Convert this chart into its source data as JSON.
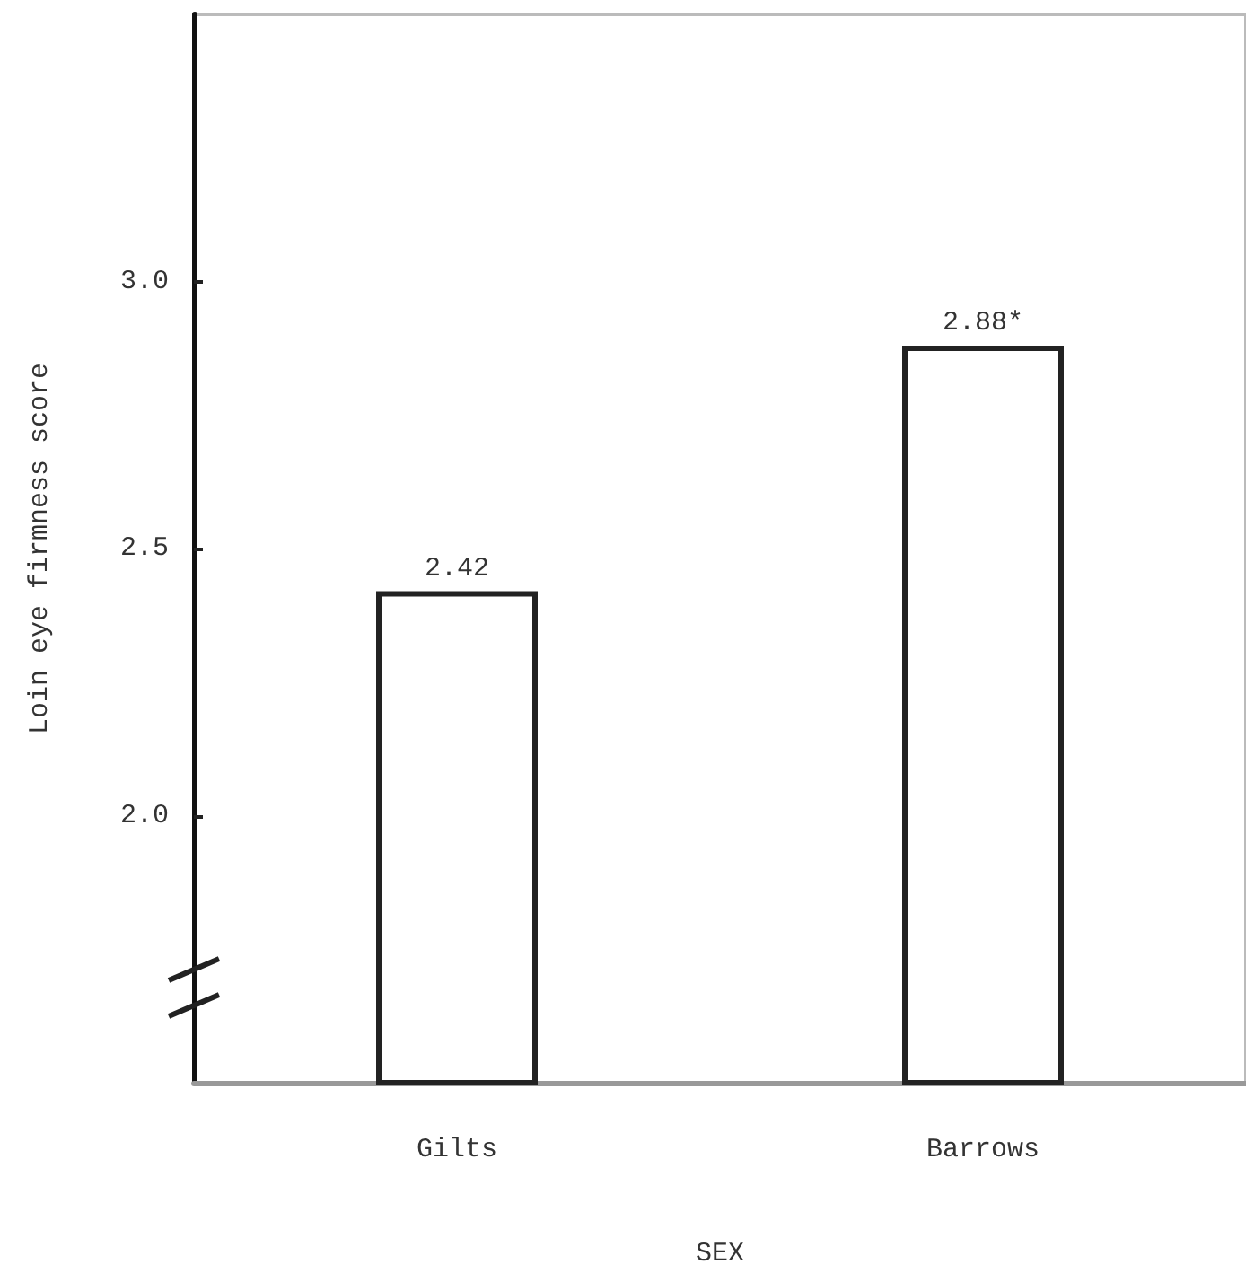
{
  "chart_data": {
    "type": "bar",
    "xlabel": "SEX",
    "ylabel": "Loin eye firmness score",
    "categories": [
      "Gilts",
      "Barrows"
    ],
    "values": [
      2.42,
      2.88
    ],
    "value_labels": [
      "2.42",
      "2.88*"
    ],
    "color": "#ffffff",
    "ylim": [
      1.5,
      3.5
    ],
    "yticks": [
      {
        "value": 2,
        "label": "2.0"
      },
      {
        "value": 2.5,
        "label": "2.5"
      },
      {
        "value": 3,
        "label": "3.0"
      }
    ],
    "grid": false
  }
}
